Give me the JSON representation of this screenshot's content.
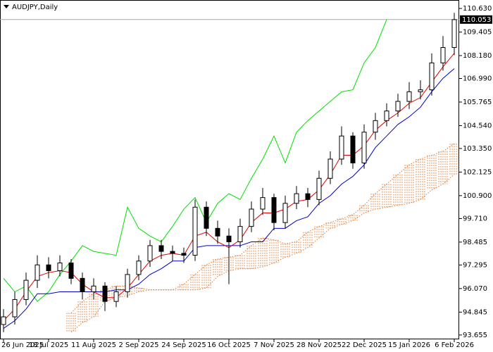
{
  "chart_data": {
    "type": "candlestick",
    "title": "AUDJPY,Daily",
    "categories": [
      "26 Jun 2025",
      null,
      null,
      null,
      "18 Jul 2025",
      null,
      null,
      null,
      "11 Aug 2025",
      null,
      null,
      null,
      "2 Sep 2025",
      null,
      null,
      null,
      "24 Sep 2025",
      null,
      null,
      null,
      "16 Oct 2025",
      null,
      null,
      null,
      "7 Nov 2025",
      null,
      null,
      null,
      "28 Nov 2025",
      null,
      null,
      null,
      "22 Dec 2025",
      null,
      null,
      null,
      "15 Jan 2026",
      null,
      null,
      null,
      "6 Feb 2026"
    ],
    "open": [
      94.2,
      94.6,
      95.5,
      96.5,
      97.3,
      97.0,
      97.4,
      96.6,
      95.9,
      96.2,
      95.4,
      95.9,
      96.8,
      97.5,
      98.3,
      98.0,
      97.9,
      97.8,
      100.3,
      99.2,
      98.8,
      98.5,
      99.3,
      100.2,
      100.8,
      99.5,
      100.5,
      101.0,
      100.7,
      101.8,
      102.8,
      104.0,
      102.6,
      104.2,
      104.8,
      105.3,
      105.8,
      106.3,
      106.4,
      107.8,
      108.6
    ],
    "high": [
      95.0,
      95.9,
      96.9,
      97.8,
      97.7,
      97.8,
      97.6,
      96.9,
      96.6,
      96.4,
      96.2,
      97.1,
      97.8,
      98.6,
      98.6,
      98.3,
      98.2,
      100.7,
      100.6,
      99.6,
      99.2,
      99.7,
      100.6,
      101.3,
      101.0,
      100.9,
      101.4,
      101.3,
      102.2,
      103.2,
      104.5,
      104.2,
      104.6,
      105.2,
      105.7,
      106.2,
      106.8,
      106.9,
      108.3,
      109.2,
      110.4
    ],
    "low": [
      93.8,
      94.2,
      95.2,
      96.1,
      96.6,
      96.7,
      96.3,
      95.5,
      95.5,
      94.9,
      95.1,
      95.6,
      96.5,
      97.2,
      97.6,
      97.5,
      97.4,
      97.5,
      98.8,
      98.4,
      96.3,
      98.2,
      99.0,
      99.9,
      99.1,
      99.2,
      100.2,
      100.3,
      100.4,
      101.5,
      102.5,
      102.3,
      102.3,
      103.8,
      104.5,
      105.0,
      105.4,
      105.9,
      106.1,
      107.4,
      108.2
    ],
    "close": [
      94.6,
      95.5,
      96.5,
      97.3,
      97.0,
      97.4,
      96.6,
      95.9,
      96.2,
      95.4,
      95.9,
      96.8,
      97.5,
      98.3,
      98.0,
      97.9,
      97.8,
      100.3,
      99.2,
      98.8,
      98.5,
      99.3,
      100.2,
      100.8,
      99.5,
      100.5,
      101.0,
      100.7,
      101.8,
      102.8,
      104.0,
      102.6,
      104.2,
      104.8,
      105.3,
      105.8,
      106.3,
      106.4,
      107.8,
      108.6,
      110.05
    ],
    "up_color": "#ffffff",
    "down_color": "#000000",
    "tenkan": {
      "color": "#e00000",
      "values": [
        94.4,
        95,
        95.9,
        96.7,
        96.9,
        97,
        96.9,
        96.3,
        95.9,
        95.6,
        95.6,
        96.1,
        96.8,
        97.5,
        97.8,
        97.9,
        97.8,
        98.8,
        99,
        98.5,
        98.2,
        98.6,
        99.5,
        100,
        100,
        100.2,
        100.6,
        100.7,
        101.2,
        102,
        103,
        103,
        103.5,
        104.3,
        104.8,
        105.2,
        105.7,
        106,
        106.8,
        107.6,
        108.3
      ]
    },
    "kijun": {
      "color": "#0000c8",
      "values": [
        94,
        94.4,
        95,
        95.8,
        95.8,
        95.9,
        95.9,
        95.9,
        95.9,
        95.9,
        96,
        96,
        96.3,
        96.8,
        97.1,
        97.5,
        97.5,
        98.2,
        98.3,
        98.3,
        98.3,
        98.3,
        98.5,
        98.5,
        99.2,
        99.2,
        99.6,
        99.8,
        100.5,
        100.9,
        101.5,
        101.9,
        102.5,
        103.4,
        104,
        104.6,
        105,
        105.5,
        106.3,
        107,
        107.5
      ]
    },
    "chikou": {
      "color": "#00e000",
      "values": [
        96.6,
        95.9,
        96.2,
        95.4,
        95.9,
        96.8,
        97.5,
        98.3,
        98.0,
        97.9,
        97.8,
        100.3,
        99.2,
        98.8,
        98.5,
        99.3,
        100.2,
        100.8,
        99.5,
        100.5,
        101.0,
        100.7,
        101.8,
        102.8,
        104.0,
        102.6,
        104.2,
        104.8,
        105.3,
        105.8,
        106.3,
        106.4,
        107.8,
        108.6,
        110.05,
        null,
        null,
        null,
        null,
        null,
        null
      ]
    },
    "cloud": {
      "color": "#e07830",
      "span_a": [
        null,
        null,
        null,
        null,
        null,
        null,
        94.8,
        95.4,
        95.8,
        96,
        96.2,
        96.2,
        96.1,
        96,
        96,
        96,
        96.3,
        96.8,
        97.3,
        97.6,
        97.7,
        97.8,
        98.3,
        98.7,
        98.6,
        98.4,
        98.5,
        99,
        99.3,
        99.5,
        99.7,
        99.9,
        100.4,
        101,
        101.5,
        102,
        102.5,
        102.8,
        103,
        103.2,
        103.6
      ],
      "span_b": [
        null,
        null,
        null,
        null,
        null,
        null,
        93.8,
        94.3,
        94.6,
        95.4,
        95.6,
        95.7,
        95.9,
        96,
        96,
        96,
        96,
        96,
        96.1,
        96.7,
        97,
        97.1,
        97.1,
        97.2,
        97.4,
        97.7,
        97.9,
        98.2,
        98.7,
        99.2,
        99.4,
        99.6,
        100,
        100.2,
        100.3,
        100.4,
        100.5,
        100.7,
        101.2,
        101.5,
        102
      ]
    },
    "last_price": 110.053,
    "ylim": [
      93.43,
      111.07
    ],
    "yticks": [
      {
        "value": 110.63,
        "label": "110.630"
      },
      109.405,
      {
        "value": 108.18,
        "label": "108.180"
      },
      {
        "value": 106.99,
        "label": "106.990"
      },
      105.765,
      {
        "value": 104.54,
        "label": "104.540"
      },
      {
        "value": 103.35,
        "label": "103.350"
      },
      102.125,
      {
        "value": 100.9,
        "label": "100.900"
      },
      {
        "value": 99.71,
        "label": "99.710"
      },
      98.485,
      97.295,
      {
        "value": 96.07,
        "label": "96.070"
      },
      94.845,
      93.655
    ]
  }
}
